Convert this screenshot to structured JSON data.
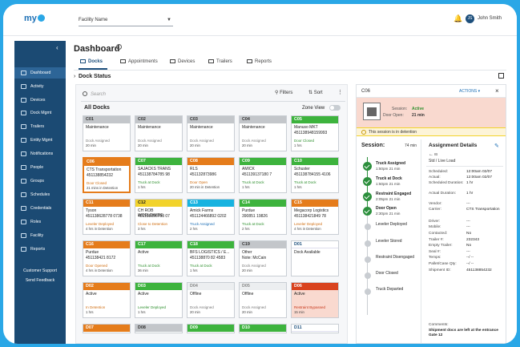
{
  "app": {
    "logo": "my",
    "facility_placeholder": "Facility Name",
    "user_initials": "JS",
    "user_name": "John Smith"
  },
  "sidebar": {
    "items": [
      {
        "label": "Dashboard",
        "icon": "dashboard-icon"
      },
      {
        "label": "Activity",
        "icon": "activity-icon"
      },
      {
        "label": "Devices",
        "icon": "devices-icon"
      },
      {
        "label": "Dock Mgmt",
        "icon": "dock-icon"
      },
      {
        "label": "Trailers",
        "icon": "trailer-icon"
      },
      {
        "label": "Entity Mgmt",
        "icon": "entity-icon"
      },
      {
        "label": "Notifications",
        "icon": "notification-icon"
      },
      {
        "label": "People",
        "icon": "people-icon"
      },
      {
        "label": "Groups",
        "icon": "groups-icon"
      },
      {
        "label": "Schedules",
        "icon": "schedule-icon"
      },
      {
        "label": "Credentials",
        "icon": "credentials-icon"
      },
      {
        "label": "Roles",
        "icon": "roles-icon"
      },
      {
        "label": "Facility",
        "icon": "facility-icon"
      },
      {
        "label": "Reports",
        "icon": "reports-icon"
      }
    ],
    "footer": [
      "Customer Support",
      "Send Feedback"
    ]
  },
  "page": {
    "title": "Dashboard",
    "tabs": [
      "Docks",
      "Appointments",
      "Devices",
      "Trailers",
      "Reports"
    ],
    "section": "Dock Status"
  },
  "docks": {
    "search_placeholder": "Search",
    "filters": "Filters",
    "sort": "Sort",
    "heading": "All Docks",
    "zone_view": "Zone View",
    "cards": [
      {
        "id": "C01",
        "color": "gray",
        "line1": "Maintenance",
        "line2": "",
        "status": "Dock Assigned",
        "status_color": "gray",
        "time": "20 min"
      },
      {
        "id": "C02",
        "color": "gray",
        "line1": "Maintenance",
        "line2": "",
        "status": "Dock Assigned",
        "status_color": "gray",
        "time": "20 min"
      },
      {
        "id": "C03",
        "color": "gray",
        "line1": "Maintenance",
        "line2": "",
        "status": "Dock Assigned",
        "status_color": "gray",
        "time": "20 min"
      },
      {
        "id": "C04",
        "color": "gray",
        "line1": "Maintenance",
        "line2": "",
        "status": "Dock Assigned",
        "status_color": "gray",
        "time": "20 min"
      },
      {
        "id": "C05",
        "color": "green",
        "line1": "Manuso MKT",
        "line2": "451138948159993",
        "status": "Door Closed",
        "status_color": "green",
        "time": "1 hrs"
      },
      {
        "id": "C06",
        "color": "orange",
        "line1": "CTS Transportation",
        "line2": "451138854232",
        "status": "Door Closed",
        "status_color": "orange",
        "time": "21 mins in Detention",
        "selected": true
      },
      {
        "id": "C07",
        "color": "green",
        "line1": "SAJACKS TRANS",
        "line2": "451138784785 98",
        "status": "Truck at Dock",
        "status_color": "green",
        "time": "1 hrs"
      },
      {
        "id": "C08",
        "color": "orange",
        "line1": "RLS",
        "line2": "451132873986",
        "status": "Door Open",
        "status_color": "orange",
        "time": "20 min in Detention"
      },
      {
        "id": "C09",
        "color": "green",
        "line1": "AMICK",
        "line2": "451139137180 7",
        "status": "Truck at Dock",
        "status_color": "green",
        "time": "1 hrs"
      },
      {
        "id": "C10",
        "color": "green",
        "line1": "Schuster",
        "line2": "451138784155 4106",
        "status": "Truck at Dock",
        "status_color": "green",
        "time": "1 hrs"
      },
      {
        "id": "C11",
        "color": "orange",
        "line1": "Tyson",
        "line2": "451138628778 0738",
        "status": "Leveler Deployed",
        "status_color": "orange",
        "time": "4 hrs in Detention"
      },
      {
        "id": "C12",
        "color": "yellow",
        "line1": "CH ROB WORLDWIDE",
        "line2": "451138896753 07",
        "status": "Close to Detention",
        "status_color": "orange",
        "time": "3 hrs"
      },
      {
        "id": "C13",
        "color": "cyan",
        "line1": "Amick Farms",
        "line2": "451124466892 0202",
        "status": "Truck Assigned",
        "status_color": "blue",
        "time": "2 hrs"
      },
      {
        "id": "C14",
        "color": "green",
        "line1": "Purdue",
        "line2": "390851 19826",
        "status": "Truck at Dock",
        "status_color": "green",
        "time": "2 hrs"
      },
      {
        "id": "C15",
        "color": "orange",
        "line1": "Megacorp Logistics",
        "line2": "451138421849 78",
        "status": "Leveler Deployed",
        "status_color": "orange",
        "time": "4 hrs in Detention"
      },
      {
        "id": "C16",
        "color": "orange",
        "line1": "Purdue",
        "line2": "451138421 8172",
        "status": "Door Opened",
        "status_color": "orange",
        "time": "4 hrs in Detention"
      },
      {
        "id": "C17",
        "color": "green",
        "line1": "Active",
        "line2": "",
        "status": "Truck at Dock",
        "status_color": "green",
        "time": "36 min"
      },
      {
        "id": "C18",
        "color": "green",
        "line1": "BFS LOGISTICS / E...",
        "line2": "451138870 82 4583",
        "status": "Truck at Dock",
        "status_color": "green",
        "time": "1 hrs"
      },
      {
        "id": "C19",
        "color": "gray",
        "line1": "Other",
        "line2": "Note: McCain",
        "status": "Dock Assigned",
        "status_color": "gray",
        "time": "20 min"
      },
      {
        "id": "D01",
        "color": "white",
        "line1": "Dock Available",
        "line2": "",
        "status": "",
        "status_color": "gray",
        "time": ""
      },
      {
        "id": "D02",
        "color": "orange",
        "line1": "Active",
        "line2": "",
        "status": "In Detention",
        "status_color": "orange",
        "time": "1 hrs"
      },
      {
        "id": "D03",
        "color": "green",
        "line1": "Active",
        "line2": "",
        "status": "Leveler Deployed",
        "status_color": "green",
        "time": "1 hrs"
      },
      {
        "id": "D04",
        "color": "lgray",
        "line1": "Offline",
        "line2": "",
        "status": "Dock Assigned",
        "status_color": "gray",
        "time": "20 min"
      },
      {
        "id": "D05",
        "color": "lgray",
        "line1": "Offline",
        "line2": "",
        "status": "Dock Assigned",
        "status_color": "gray",
        "time": "20 min"
      },
      {
        "id": "D06",
        "color": "red",
        "line1": "Active",
        "line2": "",
        "status": "Restraint Bypassed",
        "status_color": "red",
        "time": "15 min",
        "red": true
      },
      {
        "id": "D07",
        "color": "orange",
        "line1": "",
        "line2": "",
        "status": "",
        "status_color": "gray",
        "time": ""
      },
      {
        "id": "D08",
        "color": "gray",
        "line1": "",
        "line2": "",
        "status": "",
        "status_color": "gray",
        "time": ""
      },
      {
        "id": "D09",
        "color": "green",
        "line1": "",
        "line2": "",
        "status": "",
        "status_color": "gray",
        "time": ""
      },
      {
        "id": "D10",
        "color": "green",
        "line1": "",
        "line2": "",
        "status": "",
        "status_color": "gray",
        "time": ""
      },
      {
        "id": "D11",
        "color": "white",
        "line1": "",
        "line2": "",
        "status": "",
        "status_color": "gray",
        "time": ""
      }
    ]
  },
  "detail": {
    "dock": "C06",
    "actions": "ACTIONS",
    "session_label": "Session:",
    "session_value": "Active",
    "door_label": "Door Open:",
    "door_value": "21 min",
    "detention_text": "This session is in detention",
    "session_title": "Session:",
    "session_time": "74 min",
    "timeline": [
      {
        "label": "Truck Assigned",
        "time": "1:50pm 21 min",
        "done": true
      },
      {
        "label": "Truck at Dock",
        "time": "1:50pm 21 min",
        "done": true
      },
      {
        "label": "Restraint Engaged",
        "time": "2:05pm 21 min",
        "done": true
      },
      {
        "label": "Door Open",
        "time": "2:30pm 21 min",
        "done": true
      },
      {
        "label": "Leveler Deployed",
        "time": "",
        "done": false
      },
      {
        "label": "Leveler Stored",
        "time": "",
        "done": false
      },
      {
        "label": "Restraint Disengaged",
        "time": "",
        "done": false
      },
      {
        "label": "Door Closed",
        "time": "",
        "done": false
      },
      {
        "label": "Truck Departed",
        "time": "",
        "done": false
      }
    ],
    "assignment_title": "Assignment Details",
    "unload_icon_label": "IB",
    "unload_type": "Std / Live Load",
    "fields": [
      {
        "k": "Scheduled:",
        "v": "12:00am 02/07"
      },
      {
        "k": "Actual:",
        "v": "12:00am 02/07"
      },
      {
        "k": "Scheduled Duration:",
        "v": "1 hr"
      },
      {
        "k": "Actual Duration:",
        "v": "1 hr"
      },
      {
        "k": "Vendor:",
        "v": "---"
      },
      {
        "k": "Carrier:",
        "v": "CTS Transportation"
      },
      {
        "k": "Driver:",
        "v": "---"
      },
      {
        "k": "Mobile:",
        "v": "---"
      },
      {
        "k": "Contacted:",
        "v": "No"
      },
      {
        "k": "Trailer #:",
        "v": "232343"
      },
      {
        "k": "Empty Trailer:",
        "v": "No"
      },
      {
        "k": "Seal #:",
        "v": "---"
      },
      {
        "k": "Temps:",
        "v": "--/ --"
      },
      {
        "k": "Pallet/Case Qty:",
        "v": "--/ --"
      },
      {
        "k": "Shipment ID:",
        "v": "451138854232"
      }
    ],
    "comments_label": "Comments:",
    "comments_value": "Shipment docs are left at the entrance Gate 12"
  }
}
